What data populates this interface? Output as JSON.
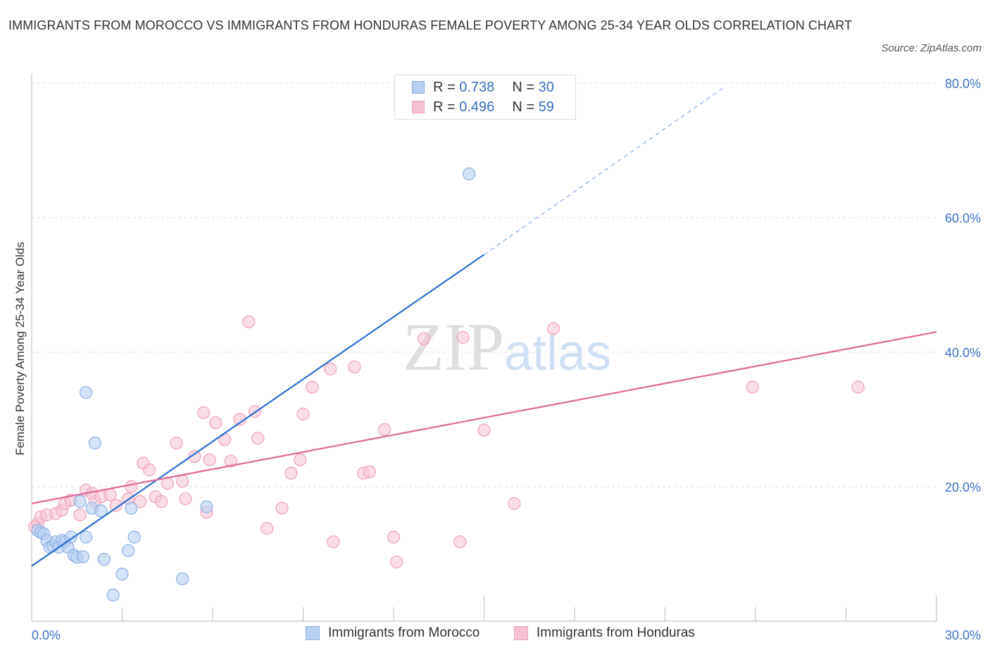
{
  "title": "IMMIGRANTS FROM MOROCCO VS IMMIGRANTS FROM HONDURAS FEMALE POVERTY AMONG 25-34 YEAR OLDS CORRELATION CHART",
  "source": "Source: ZipAtlas.com",
  "watermark": "ZIPatlas",
  "legend": {
    "rows": [
      {
        "r_label": "R =",
        "r_value": "0.738",
        "n_label": "N =",
        "n_value": "30"
      },
      {
        "r_label": "R =",
        "r_value": "0.496",
        "n_label": "N =",
        "n_value": "59"
      }
    ]
  },
  "bottom_legend": [
    "Immigrants from Morocco",
    "Immigrants from Honduras"
  ],
  "colors": {
    "morocco_fill": "#b8d1f3",
    "morocco_stroke": "#8bb0e3",
    "morocco_line": "#2a6fd0",
    "honduras_fill": "#f6c3d3",
    "honduras_stroke": "#eea2bb",
    "honduras_line": "#e0679a",
    "tick_text": "#3a6fc4"
  },
  "chart_data": {
    "type": "scatter",
    "title": "IMMIGRANTS FROM MOROCCO VS IMMIGRANTS FROM HONDURAS FEMALE POVERTY AMONG 25-34 YEAR OLDS CORRELATION CHART",
    "xlabel": "",
    "ylabel": "Female Poverty Among 25-34 Year Olds",
    "xlim": [
      0,
      30
    ],
    "ylim": [
      0,
      80
    ],
    "x_tick_labels": [
      "0.0%",
      "30.0%"
    ],
    "y_ticks": [
      20,
      40,
      60,
      80
    ],
    "y_tick_labels": [
      "20.0%",
      "40.0%",
      "60.0%",
      "80.0%"
    ],
    "grid": true,
    "series": [
      {
        "name": "Immigrants from Morocco",
        "R": 0.738,
        "N": 30,
        "trend": {
          "x0": 0,
          "y0": 8.2,
          "x1": 15,
          "y1": 54.5,
          "dashed_to_x": 23,
          "dashed_to_y": 79.5
        },
        "points": [
          [
            0.2,
            13.5
          ],
          [
            0.3,
            13.2
          ],
          [
            0.4,
            13.0
          ],
          [
            0.5,
            12.0
          ],
          [
            0.6,
            11.0
          ],
          [
            0.7,
            11.2
          ],
          [
            0.8,
            11.8
          ],
          [
            0.9,
            11.0
          ],
          [
            1.0,
            12.0
          ],
          [
            1.1,
            11.8
          ],
          [
            1.2,
            11.0
          ],
          [
            1.3,
            12.5
          ],
          [
            1.4,
            9.8
          ],
          [
            1.5,
            9.5
          ],
          [
            1.6,
            17.8
          ],
          [
            1.7,
            9.6
          ],
          [
            1.8,
            12.5
          ],
          [
            1.8,
            34.0
          ],
          [
            2.0,
            16.8
          ],
          [
            2.1,
            26.5
          ],
          [
            2.3,
            16.4
          ],
          [
            2.4,
            9.2
          ],
          [
            2.7,
            3.9
          ],
          [
            3.0,
            7.0
          ],
          [
            3.2,
            10.5
          ],
          [
            3.3,
            16.8
          ],
          [
            3.4,
            12.5
          ],
          [
            5.0,
            6.3
          ],
          [
            5.8,
            17.0
          ],
          [
            14.5,
            66.5
          ]
        ]
      },
      {
        "name": "Immigrants from Honduras",
        "R": 0.496,
        "N": 59,
        "trend": {
          "x0": 0,
          "y0": 17.5,
          "x1": 30,
          "y1": 43.0
        },
        "points": [
          [
            0.1,
            14.0
          ],
          [
            0.2,
            14.5
          ],
          [
            0.3,
            15.5
          ],
          [
            0.5,
            15.8
          ],
          [
            0.8,
            16.0
          ],
          [
            1.0,
            16.5
          ],
          [
            1.1,
            17.5
          ],
          [
            1.3,
            18.0
          ],
          [
            1.6,
            15.8
          ],
          [
            1.8,
            19.5
          ],
          [
            2.0,
            19.0
          ],
          [
            2.1,
            17.8
          ],
          [
            2.3,
            18.5
          ],
          [
            2.6,
            18.8
          ],
          [
            2.8,
            17.2
          ],
          [
            3.2,
            18.2
          ],
          [
            3.3,
            20.0
          ],
          [
            3.6,
            17.8
          ],
          [
            3.7,
            23.5
          ],
          [
            3.9,
            22.5
          ],
          [
            4.1,
            18.5
          ],
          [
            4.3,
            17.8
          ],
          [
            4.5,
            20.5
          ],
          [
            4.8,
            26.5
          ],
          [
            5.0,
            20.8
          ],
          [
            5.1,
            18.2
          ],
          [
            5.4,
            24.5
          ],
          [
            5.7,
            31.0
          ],
          [
            5.8,
            16.2
          ],
          [
            5.9,
            24.0
          ],
          [
            6.1,
            29.5
          ],
          [
            6.4,
            27.0
          ],
          [
            6.6,
            23.8
          ],
          [
            6.9,
            30.0
          ],
          [
            7.2,
            44.5
          ],
          [
            7.4,
            31.2
          ],
          [
            7.5,
            27.2
          ],
          [
            7.8,
            13.8
          ],
          [
            8.3,
            16.8
          ],
          [
            8.6,
            22.0
          ],
          [
            8.9,
            24.0
          ],
          [
            9.0,
            30.8
          ],
          [
            9.3,
            34.8
          ],
          [
            9.9,
            37.5
          ],
          [
            10.0,
            11.8
          ],
          [
            10.7,
            37.8
          ],
          [
            11.0,
            22.0
          ],
          [
            11.2,
            22.2
          ],
          [
            11.7,
            28.5
          ],
          [
            12.0,
            12.5
          ],
          [
            12.1,
            8.8
          ],
          [
            13.0,
            42.0
          ],
          [
            14.2,
            11.8
          ],
          [
            14.3,
            42.2
          ],
          [
            15.0,
            28.4
          ],
          [
            16.0,
            17.5
          ],
          [
            17.3,
            43.5
          ],
          [
            23.9,
            34.8
          ],
          [
            27.4,
            34.8
          ]
        ]
      }
    ]
  }
}
